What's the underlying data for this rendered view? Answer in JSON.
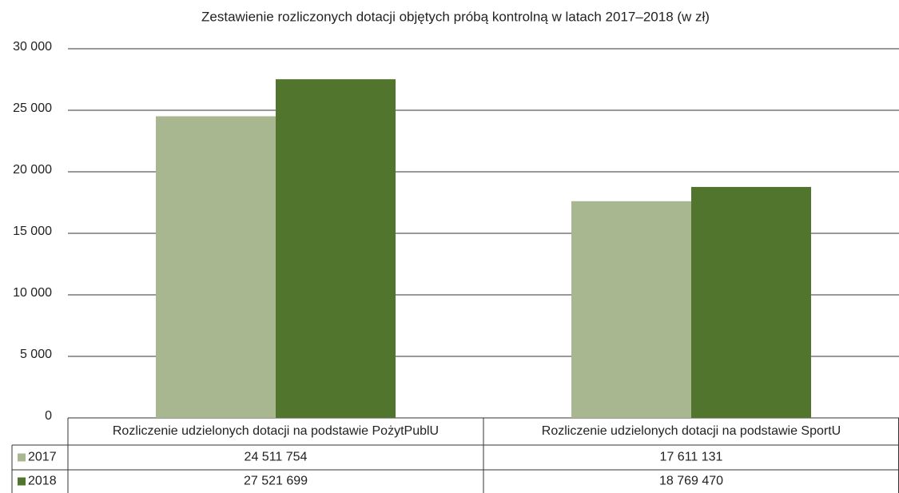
{
  "chart_data": {
    "type": "bar",
    "title": "Zestawienie rozliczonych dotacji objętych próbą kontrolną w latach 2017–2018 (w zł)",
    "categories": [
      "Rozliczenie udzielonych dotacji na podstawie PożytPublU",
      "Rozliczenie udzielonych dotacji na podstawie SportU"
    ],
    "series": [
      {
        "name": "2017",
        "color": "#a8b78f",
        "values": [
          24511.754,
          17611.131
        ],
        "value_labels": [
          "24 511 754",
          "17 611 131"
        ]
      },
      {
        "name": "2018",
        "color": "#51752c",
        "values": [
          27521.699,
          18769.47
        ],
        "value_labels": [
          "27 521 699",
          "18 769 470"
        ]
      }
    ],
    "ylim": [
      0,
      30000
    ],
    "yticks": [
      0,
      {
        "value": 5000,
        "label": "5 000"
      },
      {
        "value": 10000,
        "label": "10 000"
      },
      {
        "value": 15000,
        "label": "15 000"
      },
      {
        "value": 20000,
        "label": "20 000"
      },
      {
        "value": 25000,
        "label": "25 000"
      },
      {
        "value": 30000,
        "label": "30 000"
      }
    ],
    "grid": true
  }
}
